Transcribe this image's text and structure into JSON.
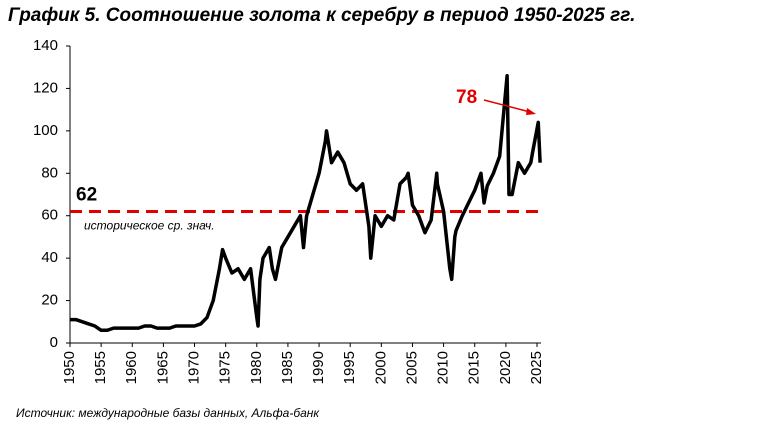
{
  "chart_data": {
    "type": "line",
    "title": "График 5. Соотношение золота к серебру в период 1950-2025 гг.",
    "source": "Источник: международные базы данных, Альфа-банк",
    "x": [
      1950,
      1951,
      1952,
      1953,
      1954,
      1955,
      1956,
      1957,
      1958,
      1959,
      1960,
      1961,
      1962,
      1963,
      1964,
      1965,
      1966,
      1967,
      1968,
      1969,
      1970,
      1971,
      1972,
      1973,
      1974,
      1974.5,
      1975,
      1976,
      1977,
      1978,
      1979,
      1980,
      1980.2,
      1980.5,
      1981,
      1982,
      1982.5,
      1983,
      1984,
      1985,
      1986,
      1987,
      1987.5,
      1988,
      1989,
      1990,
      1991,
      1991.2,
      1992,
      1993,
      1994,
      1995,
      1996,
      1997,
      1998,
      1998.3,
      1999,
      2000,
      2001,
      2002,
      2003,
      2004,
      2004.3,
      2005,
      2006,
      2007,
      2008,
      2008.9,
      2009,
      2010,
      2011,
      2011.3,
      2011.8,
      2012,
      2013,
      2014,
      2015,
      2016,
      2016.5,
      2017,
      2018,
      2019,
      2020.2,
      2020.5,
      2021,
      2022,
      2023,
      2024,
      2024.3,
      2025.2,
      2025.5
    ],
    "series": [
      {
        "name": "Соотношение золота к серебру",
        "color": "#000000",
        "values": [
          11,
          11,
          10,
          9,
          8,
          6,
          6,
          7,
          7,
          7,
          7,
          7,
          8,
          8,
          7,
          7,
          7,
          8,
          8,
          8,
          8,
          9,
          12,
          20,
          35,
          44,
          40,
          33,
          35,
          30,
          35,
          12,
          8,
          30,
          40,
          45,
          35,
          30,
          45,
          50,
          55,
          60,
          45,
          60,
          70,
          80,
          95,
          100,
          85,
          90,
          85,
          75,
          72,
          75,
          55,
          40,
          60,
          55,
          60,
          58,
          75,
          78,
          80,
          65,
          60,
          52,
          58,
          80,
          75,
          62,
          35,
          30,
          50,
          53,
          60,
          66,
          72,
          80,
          66,
          74,
          80,
          88,
          126,
          70,
          70,
          85,
          80,
          85,
          90,
          104,
          85
        ]
      }
    ],
    "xlim": [
      1950,
      2025
    ],
    "xticks": [
      1950,
      1955,
      1960,
      1965,
      1970,
      1975,
      1980,
      1985,
      1990,
      1995,
      2000,
      2005,
      2010,
      2015,
      2020,
      2025
    ],
    "ylim": [
      0,
      140
    ],
    "yticks": [
      0,
      20,
      40,
      60,
      80,
      100,
      120,
      140
    ],
    "mean_line": {
      "value": 62,
      "label": "историческое ср. знач.",
      "color": "#e00000"
    },
    "callout": {
      "value": 78,
      "color": "#e00000"
    }
  }
}
